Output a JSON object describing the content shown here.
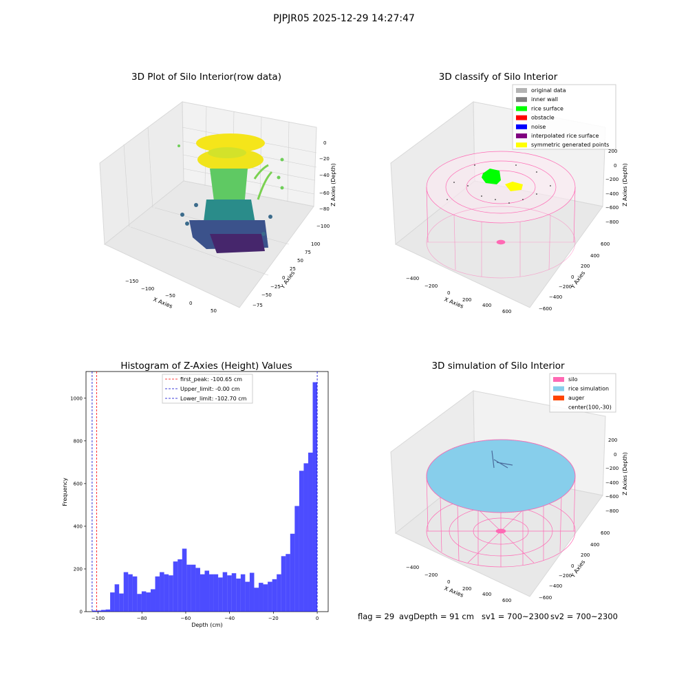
{
  "suptitle": "PJPJR05 2025-12-29 14:27:47",
  "panels": {
    "raw": {
      "title": "3D Plot of Silo Interior(row data)",
      "xlabel": "X Axies",
      "ylabel": "Y Axies",
      "zlabel": "Z Axies (Depth)",
      "xticks": [
        "−150",
        "−100",
        "−50",
        "0",
        "50"
      ],
      "yticks": [
        "100",
        "75",
        "50",
        "25",
        "0",
        "−25",
        "−50",
        "−75"
      ],
      "zticks": [
        "0",
        "−20",
        "−40",
        "−60",
        "−80",
        "−100"
      ]
    },
    "classify": {
      "title": "3D classify of Silo Interior",
      "xlabel": "X Axies",
      "ylabel": "Y Axies",
      "zlabel": "Z Axies (Depth)",
      "xticks": [
        "−400",
        "−200",
        "0",
        "200",
        "400",
        "600"
      ],
      "yticks": [
        "600",
        "400",
        "200",
        "0",
        "−200",
        "−400",
        "−600"
      ],
      "zticks": [
        "200",
        "0",
        "−200",
        "−400",
        "−600",
        "−800"
      ],
      "legend": [
        {
          "label": "original data",
          "color": "#b3b3b3"
        },
        {
          "label": "inner wall",
          "color": "#808080"
        },
        {
          "label": "rice surface",
          "color": "#00ff00"
        },
        {
          "label": "obstacle",
          "color": "#ff0000"
        },
        {
          "label": "noise",
          "color": "#0000ff"
        },
        {
          "label": "interpolated rice surface",
          "color": "#800080"
        },
        {
          "label": "symmetric generated points",
          "color": "#ffff00"
        }
      ]
    },
    "simulation": {
      "title": "3D simulation of Silo Interior",
      "xlabel": "X Axies",
      "ylabel": "Y Axies",
      "zlabel": "Z Axies (Depth)",
      "xticks": [
        "−400",
        "−200",
        "0",
        "200",
        "400",
        "600"
      ],
      "yticks": [
        "600",
        "400",
        "200",
        "0",
        "−200",
        "−400",
        "−600"
      ],
      "zticks": [
        "200",
        "0",
        "−200",
        "−400",
        "−600",
        "−800"
      ],
      "legend": [
        {
          "label": "silo",
          "color": "#ff69b4"
        },
        {
          "label": "rice simulation",
          "color": "#87ceeb"
        },
        {
          "label": "auger",
          "color": "#ff4500"
        },
        {
          "label": "center(100,-30)",
          "color": ""
        }
      ]
    }
  },
  "colors": {
    "hist_bar": "#0000ff",
    "first_peak_line": "#ff0000",
    "limit_line": "#0000cd",
    "silo_wire": "#ff69b4",
    "rice_fill": "#87ceeb"
  },
  "status": {
    "flag": "flag = 29",
    "avg_depth": "avgDepth = 91 cm",
    "sv1": "sv1 = 700~2300",
    "sv2": "sv2 = 700~2300"
  },
  "chart_data": {
    "type": "bar",
    "title": "Histogram of Z-Axies (Height) Values",
    "xlabel": "Depth (cm)",
    "ylabel": "Frequency",
    "xlim": [
      -105.5,
      5
    ],
    "ylim": [
      0,
      1125
    ],
    "xticks": [
      -100,
      -80,
      -60,
      -40,
      -20,
      0
    ],
    "yticks": [
      0,
      200,
      400,
      600,
      800,
      1000
    ],
    "bin_start": -102.7,
    "bin_width": 2.054,
    "values": [
      5,
      5,
      8,
      10,
      90,
      128,
      85,
      185,
      175,
      165,
      83,
      95,
      90,
      105,
      165,
      185,
      175,
      170,
      235,
      245,
      295,
      220,
      220,
      205,
      175,
      192,
      175,
      175,
      160,
      185,
      170,
      180,
      155,
      175,
      140,
      182,
      112,
      135,
      128,
      140,
      152,
      175,
      260,
      270,
      365,
      495,
      660,
      695,
      745,
      1075
    ],
    "vlines": [
      {
        "label": "first_peak: -100.65 cm",
        "x": -100.65,
        "style": "red-dashed"
      },
      {
        "label": "Upper_limit: -0.00 cm",
        "x": 0,
        "style": "blue-dashed"
      },
      {
        "label": "Lower_limit: -102.70 cm",
        "x": -102.7,
        "style": "blue-dashed"
      }
    ]
  }
}
